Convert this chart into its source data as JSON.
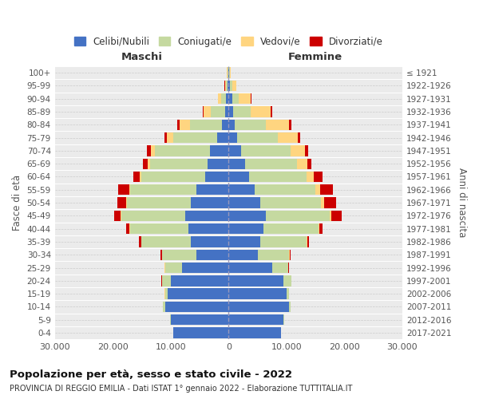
{
  "age_groups": [
    "0-4",
    "5-9",
    "10-14",
    "15-19",
    "20-24",
    "25-29",
    "30-34",
    "35-39",
    "40-44",
    "45-49",
    "50-54",
    "55-59",
    "60-64",
    "65-69",
    "70-74",
    "75-79",
    "80-84",
    "85-89",
    "90-94",
    "95-99",
    "100+"
  ],
  "birth_years": [
    "2017-2021",
    "2012-2016",
    "2007-2011",
    "2002-2006",
    "1997-2001",
    "1992-1996",
    "1987-1991",
    "1982-1986",
    "1977-1981",
    "1972-1976",
    "1967-1971",
    "1962-1966",
    "1957-1961",
    "1952-1956",
    "1947-1951",
    "1942-1946",
    "1937-1941",
    "1932-1936",
    "1927-1931",
    "1922-1926",
    "≤ 1921"
  ],
  "males": {
    "celibi": [
      9500,
      10000,
      11000,
      10500,
      10000,
      8000,
      5500,
      6500,
      7000,
      7500,
      6500,
      5500,
      4000,
      3600,
      3200,
      2000,
      1200,
      600,
      400,
      200,
      100
    ],
    "coniugati": [
      50,
      100,
      300,
      500,
      1500,
      3000,
      6000,
      8500,
      10000,
      11000,
      11000,
      11500,
      11000,
      10000,
      9500,
      7500,
      5500,
      2500,
      900,
      300,
      100
    ],
    "vedovi": [
      5,
      5,
      5,
      10,
      20,
      30,
      40,
      60,
      80,
      100,
      150,
      200,
      300,
      400,
      700,
      1200,
      1800,
      1200,
      500,
      150,
      50
    ],
    "divorziati": [
      5,
      5,
      10,
      20,
      50,
      100,
      200,
      400,
      600,
      1200,
      1500,
      1800,
      1200,
      800,
      700,
      400,
      300,
      150,
      80,
      30,
      10
    ]
  },
  "females": {
    "nubili": [
      9000,
      9500,
      10500,
      10000,
      9500,
      7500,
      5000,
      5500,
      6000,
      6500,
      5500,
      4500,
      3500,
      2800,
      2200,
      1500,
      1000,
      800,
      600,
      300,
      100
    ],
    "coniugate": [
      40,
      80,
      200,
      400,
      1300,
      2800,
      5500,
      8000,
      9500,
      11000,
      10500,
      10500,
      10000,
      9000,
      8500,
      7000,
      5500,
      3000,
      1200,
      400,
      100
    ],
    "vedove": [
      5,
      5,
      5,
      10,
      20,
      40,
      60,
      100,
      150,
      300,
      500,
      800,
      1200,
      1800,
      2500,
      3500,
      4000,
      3500,
      2000,
      600,
      200
    ],
    "divorziate": [
      5,
      5,
      10,
      20,
      50,
      100,
      150,
      300,
      600,
      1800,
      2000,
      2200,
      1500,
      700,
      600,
      400,
      300,
      200,
      100,
      50,
      10
    ]
  },
  "colors": {
    "celibi": "#4472C4",
    "coniugati": "#c5d9a0",
    "vedovi": "#FFD580",
    "divorziati": "#CC0000"
  },
  "title": "Popolazione per età, sesso e stato civile - 2022",
  "subtitle": "PROVINCIA DI REGGIO EMILIA - Dati ISTAT 1° gennaio 2022 - Elaborazione TUTTITALIA.IT",
  "xlabel_left": "Maschi",
  "xlabel_right": "Femmine",
  "ylabel_left": "Fasce di età",
  "ylabel_right": "Anni di nascita",
  "xlim": 30000,
  "bg_color": "#ffffff",
  "plot_bg_color": "#ebebeb",
  "legend_labels": [
    "Celibi/Nubili",
    "Coniugati/e",
    "Vedovi/e",
    "Divorziati/e"
  ]
}
